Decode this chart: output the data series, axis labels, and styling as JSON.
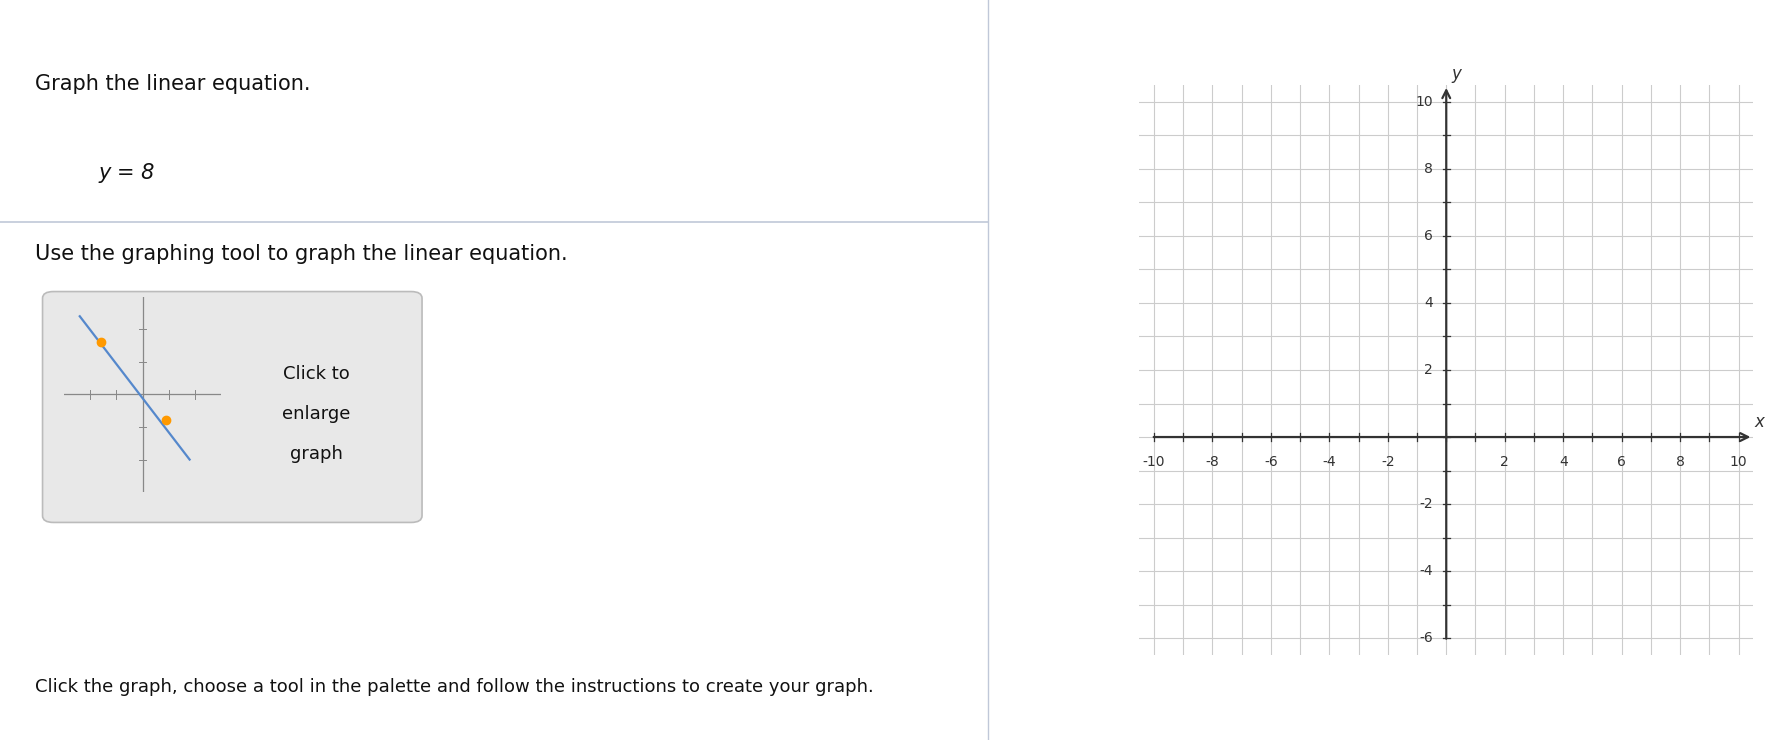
{
  "title_text": "Graph the linear equation.",
  "equation": "y = 8",
  "instruction": "Use the graphing tool to graph the linear equation.",
  "button_lines": [
    "Click to",
    "enlarge",
    "graph"
  ],
  "bottom_text": "Click the graph, choose a tool in the palette and follow the instructions to create your graph.",
  "x_label": "x",
  "y_label": "y",
  "x_min": -10,
  "x_max": 10,
  "y_min": -6,
  "y_max": 10,
  "x_ticks": [
    -10,
    -8,
    -6,
    -4,
    -2,
    2,
    4,
    6,
    8,
    10
  ],
  "y_ticks": [
    -6,
    -4,
    -2,
    2,
    4,
    6,
    8,
    10
  ],
  "grid_color": "#cccccc",
  "axis_color": "#333333",
  "bg_color": "#ffffff",
  "button_bg": "#e8e8e8",
  "button_edge": "#bbbbbb",
  "divider_color": "#c0c8d8",
  "text_color": "#111111",
  "mini_line_color": "#5588cc",
  "mini_dot_color": "#ff9900",
  "mini_axis_color": "#888888"
}
